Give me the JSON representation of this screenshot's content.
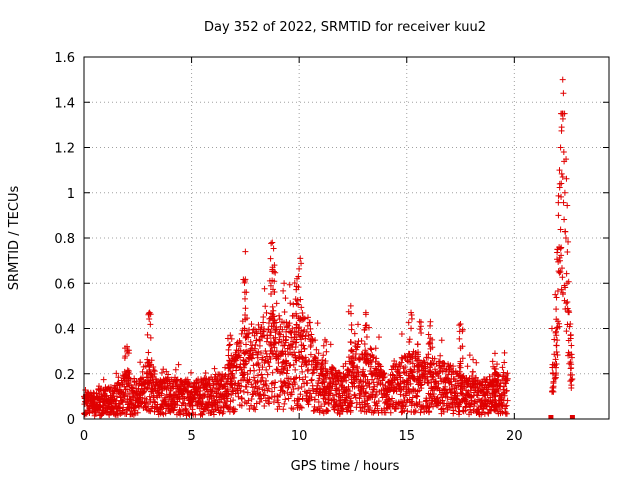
{
  "chart_data": {
    "type": "scatter",
    "title": "Day 352 of 2022, SRMTID for receiver kuu2",
    "xlabel": "GPS time / hours",
    "ylabel": "SRMTID / TECUs",
    "xlim": [
      0,
      24.4
    ],
    "ylim": [
      0,
      1.6
    ],
    "xticks": [
      0,
      5,
      10,
      15,
      20
    ],
    "yticks": [
      0,
      0.2,
      0.4,
      0.6,
      0.8,
      1,
      1.2,
      1.4,
      1.6
    ],
    "ytick_labels": [
      "0",
      "0.2",
      "0.4",
      "0.6",
      "0.8",
      "1",
      "1.2",
      "1.4",
      "1.6"
    ],
    "grid": true,
    "marker": "+",
    "color": "#e00000",
    "series": [
      {
        "name": "SRMTID",
        "envelope": [
          {
            "x": 0.0,
            "y": 0.07
          },
          {
            "x": 0.5,
            "y": 0.08
          },
          {
            "x": 1.0,
            "y": 0.09
          },
          {
            "x": 1.5,
            "y": 0.1
          },
          {
            "x": 2.0,
            "y": 0.14
          },
          {
            "x": 2.5,
            "y": 0.1
          },
          {
            "x": 3.0,
            "y": 0.17
          },
          {
            "x": 3.5,
            "y": 0.11
          },
          {
            "x": 4.0,
            "y": 0.12
          },
          {
            "x": 4.5,
            "y": 0.11
          },
          {
            "x": 5.0,
            "y": 0.1
          },
          {
            "x": 5.5,
            "y": 0.12
          },
          {
            "x": 6.0,
            "y": 0.12
          },
          {
            "x": 6.5,
            "y": 0.14
          },
          {
            "x": 7.0,
            "y": 0.18
          },
          {
            "x": 7.5,
            "y": 0.3
          },
          {
            "x": 8.0,
            "y": 0.25
          },
          {
            "x": 8.5,
            "y": 0.3
          },
          {
            "x": 9.0,
            "y": 0.29
          },
          {
            "x": 9.5,
            "y": 0.28
          },
          {
            "x": 10.0,
            "y": 0.3
          },
          {
            "x": 10.5,
            "y": 0.26
          },
          {
            "x": 11.0,
            "y": 0.18
          },
          {
            "x": 11.5,
            "y": 0.15
          },
          {
            "x": 12.0,
            "y": 0.14
          },
          {
            "x": 12.5,
            "y": 0.2
          },
          {
            "x": 13.0,
            "y": 0.22
          },
          {
            "x": 13.5,
            "y": 0.18
          },
          {
            "x": 14.0,
            "y": 0.14
          },
          {
            "x": 14.5,
            "y": 0.15
          },
          {
            "x": 15.0,
            "y": 0.2
          },
          {
            "x": 15.5,
            "y": 0.19
          },
          {
            "x": 16.0,
            "y": 0.18
          },
          {
            "x": 16.5,
            "y": 0.16
          },
          {
            "x": 17.0,
            "y": 0.15
          },
          {
            "x": 17.5,
            "y": 0.13
          },
          {
            "x": 18.0,
            "y": 0.12
          },
          {
            "x": 18.5,
            "y": 0.11
          },
          {
            "x": 19.0,
            "y": 0.12
          },
          {
            "x": 19.5,
            "y": 0.13
          }
        ],
        "bursts": [
          {
            "x": 3.05,
            "y": 0.47
          },
          {
            "x": 2.0,
            "y": 0.32
          },
          {
            "x": 7.5,
            "y": 0.74
          },
          {
            "x": 8.75,
            "y": 0.78
          },
          {
            "x": 8.85,
            "y": 0.68
          },
          {
            "x": 10.05,
            "y": 0.71
          },
          {
            "x": 9.9,
            "y": 0.62
          },
          {
            "x": 9.3,
            "y": 0.6
          },
          {
            "x": 12.4,
            "y": 0.5
          },
          {
            "x": 13.1,
            "y": 0.47
          },
          {
            "x": 15.2,
            "y": 0.47
          },
          {
            "x": 15.6,
            "y": 0.43
          },
          {
            "x": 17.5,
            "y": 0.42
          },
          {
            "x": 16.1,
            "y": 0.43
          },
          {
            "x": 6.8,
            "y": 0.37
          },
          {
            "x": 11.2,
            "y": 0.35
          },
          {
            "x": 19.1,
            "y": 0.29
          }
        ],
        "late_cluster": [
          {
            "x": 21.75,
            "y": 0.4
          },
          {
            "x": 21.8,
            "y": 0.2
          },
          {
            "x": 21.9,
            "y": 0.55
          },
          {
            "x": 22.0,
            "y": 0.75
          },
          {
            "x": 22.05,
            "y": 0.9
          },
          {
            "x": 22.1,
            "y": 1.1
          },
          {
            "x": 22.15,
            "y": 1.2
          },
          {
            "x": 22.2,
            "y": 1.29
          },
          {
            "x": 22.25,
            "y": 1.5
          },
          {
            "x": 22.28,
            "y": 1.44
          },
          {
            "x": 22.3,
            "y": 1.18
          },
          {
            "x": 22.35,
            "y": 1.0
          },
          {
            "x": 22.4,
            "y": 0.8
          },
          {
            "x": 22.45,
            "y": 0.6
          },
          {
            "x": 22.5,
            "y": 0.28
          },
          {
            "x": 22.6,
            "y": 0.42
          },
          {
            "x": 22.65,
            "y": 0.15
          }
        ],
        "zero_markers": [
          {
            "x": 21.7,
            "y": 0.0
          },
          {
            "x": 22.7,
            "y": 0.0
          }
        ]
      }
    ]
  }
}
